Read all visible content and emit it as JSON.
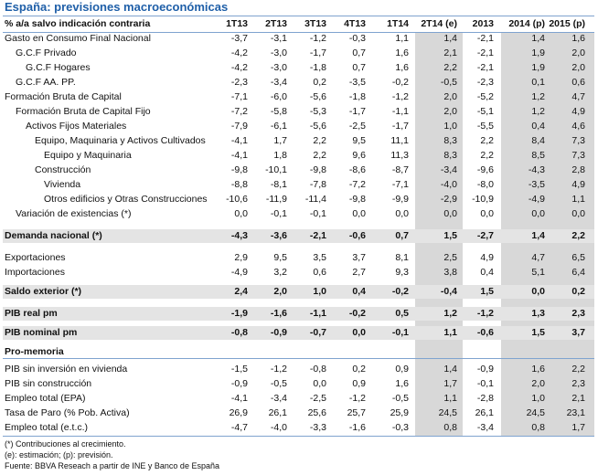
{
  "title": "España: previsiones macroeconómicas",
  "header": {
    "label": "% a/a salvo indicación contraria",
    "columns": [
      "1T13",
      "2T13",
      "3T13",
      "4T13",
      "1T14",
      "2T14 (e)",
      "2013",
      "2014 (p)",
      "2015 (p)"
    ]
  },
  "rows": [
    {
      "label": "Gasto en Consumo Final Nacional",
      "values": [
        "-3,7",
        "-3,1",
        "-1,2",
        "-0,3",
        "1,1",
        "1,4",
        "-2,1",
        "1,4",
        "1,6"
      ]
    },
    {
      "label": "G.C.F Privado",
      "values": [
        "-4,2",
        "-3,0",
        "-1,7",
        "0,7",
        "1,6",
        "2,1",
        "-2,1",
        "1,9",
        "2,0"
      ]
    },
    {
      "label": "G.C.F Hogares",
      "values": [
        "-4,2",
        "-3,0",
        "-1,8",
        "0,7",
        "1,6",
        "2,2",
        "-2,1",
        "1,9",
        "2,0"
      ]
    },
    {
      "label": "G.C.F AA. PP.",
      "values": [
        "-2,3",
        "-3,4",
        "0,2",
        "-3,5",
        "-0,2",
        "-0,5",
        "-2,3",
        "0,1",
        "0,6"
      ]
    },
    {
      "label": "Formación Bruta de Capital",
      "values": [
        "-7,1",
        "-6,0",
        "-5,6",
        "-1,8",
        "-1,2",
        "2,0",
        "-5,2",
        "1,2",
        "4,7"
      ]
    },
    {
      "label": "Formación Bruta de Capital Fijo",
      "values": [
        "-7,2",
        "-5,8",
        "-5,3",
        "-1,7",
        "-1,1",
        "2,0",
        "-5,1",
        "1,2",
        "4,9"
      ]
    },
    {
      "label": "Activos Fijos Materiales",
      "values": [
        "-7,9",
        "-6,1",
        "-5,6",
        "-2,5",
        "-1,7",
        "1,0",
        "-5,5",
        "0,4",
        "4,6"
      ]
    },
    {
      "label": "Equipo, Maquinaria y Activos Cultivados",
      "values": [
        "-4,1",
        "1,7",
        "2,2",
        "9,5",
        "11,1",
        "8,3",
        "2,2",
        "8,4",
        "7,3"
      ]
    },
    {
      "label": "Equipo y Maquinaria",
      "values": [
        "-4,1",
        "1,8",
        "2,2",
        "9,6",
        "11,3",
        "8,3",
        "2,2",
        "8,5",
        "7,3"
      ]
    },
    {
      "label": "Construcción",
      "values": [
        "-9,8",
        "-10,1",
        "-9,8",
        "-8,6",
        "-8,7",
        "-3,4",
        "-9,6",
        "-4,3",
        "2,8"
      ]
    },
    {
      "label": "Vivienda",
      "values": [
        "-8,8",
        "-8,1",
        "-7,8",
        "-7,2",
        "-7,1",
        "-4,0",
        "-8,0",
        "-3,5",
        "4,9"
      ]
    },
    {
      "label": "Otros edificios y Otras Construcciones",
      "values": [
        "-10,6",
        "-11,9",
        "-11,4",
        "-9,8",
        "-9,9",
        "-2,9",
        "-10,9",
        "-4,9",
        "1,1"
      ]
    },
    {
      "label": "Variación de existencias (*)",
      "values": [
        "0,0",
        "-0,1",
        "-0,1",
        "0,0",
        "0,0",
        "0,0",
        "0,0",
        "0,0",
        "0,0"
      ]
    },
    {
      "label": "Demanda nacional (*)",
      "total": true,
      "values": [
        "-4,3",
        "-3,6",
        "-2,1",
        "-0,6",
        "0,7",
        "1,5",
        "-2,7",
        "1,4",
        "2,2"
      ]
    },
    {
      "label": "Exportaciones",
      "values": [
        "2,9",
        "9,5",
        "3,5",
        "3,7",
        "8,1",
        "2,5",
        "4,9",
        "4,7",
        "6,5"
      ]
    },
    {
      "label": "Importaciones",
      "values": [
        "-4,9",
        "3,2",
        "0,6",
        "2,7",
        "9,3",
        "3,8",
        "0,4",
        "5,1",
        "6,4"
      ]
    },
    {
      "label": "Saldo exterior (*)",
      "total": true,
      "values": [
        "2,4",
        "2,0",
        "1,0",
        "0,4",
        "-0,2",
        "-0,4",
        "1,5",
        "0,0",
        "0,2"
      ]
    },
    {
      "label": "PIB real pm",
      "total": true,
      "values": [
        "-1,9",
        "-1,6",
        "-1,1",
        "-0,2",
        "0,5",
        "1,2",
        "-1,2",
        "1,3",
        "2,3"
      ]
    },
    {
      "label": "PIB nominal pm",
      "total": true,
      "values": [
        "-0,8",
        "-0,9",
        "-0,7",
        "0,0",
        "-0,1",
        "1,1",
        "-0,6",
        "1,5",
        "3,7"
      ]
    },
    {
      "label": "Pro-memoria",
      "heading": true,
      "values": []
    },
    {
      "label": "PIB sin inversión en vivienda",
      "values": [
        "-1,5",
        "-1,2",
        "-0,8",
        "0,2",
        "0,9",
        "1,4",
        "-0,9",
        "1,6",
        "2,2"
      ]
    },
    {
      "label": "PIB sin construcción",
      "values": [
        "-0,9",
        "-0,5",
        "0,0",
        "0,9",
        "1,6",
        "1,7",
        "-0,1",
        "2,0",
        "2,3"
      ]
    },
    {
      "label": "Empleo total (EPA)",
      "values": [
        "-4,1",
        "-3,4",
        "-2,5",
        "-1,2",
        "-0,5",
        "1,1",
        "-2,8",
        "1,0",
        "2,1"
      ]
    },
    {
      "label": "Tasa de Paro (% Pob. Activa)",
      "values": [
        "26,9",
        "26,1",
        "25,6",
        "25,7",
        "25,9",
        "24,5",
        "26,1",
        "24,5",
        "23,1"
      ]
    },
    {
      "label": "Empleo total (e.t.c.)",
      "values": [
        "-4,7",
        "-4,0",
        "-3,3",
        "-1,6",
        "-0,3",
        "0,8",
        "-3,4",
        "0,8",
        "1,7"
      ]
    }
  ],
  "footnotes": [
    "(*) Contribuciones al crecimiento.",
    "(e): estimación; (p): previsión.",
    "Fuente: BBVA Reseach a partir de INE y Banco de España"
  ],
  "colors": {
    "title": "#1f5fa8",
    "rule": "#7fa3cf",
    "shade": "#d8d8d8",
    "total_row": "#e4e4e4"
  }
}
